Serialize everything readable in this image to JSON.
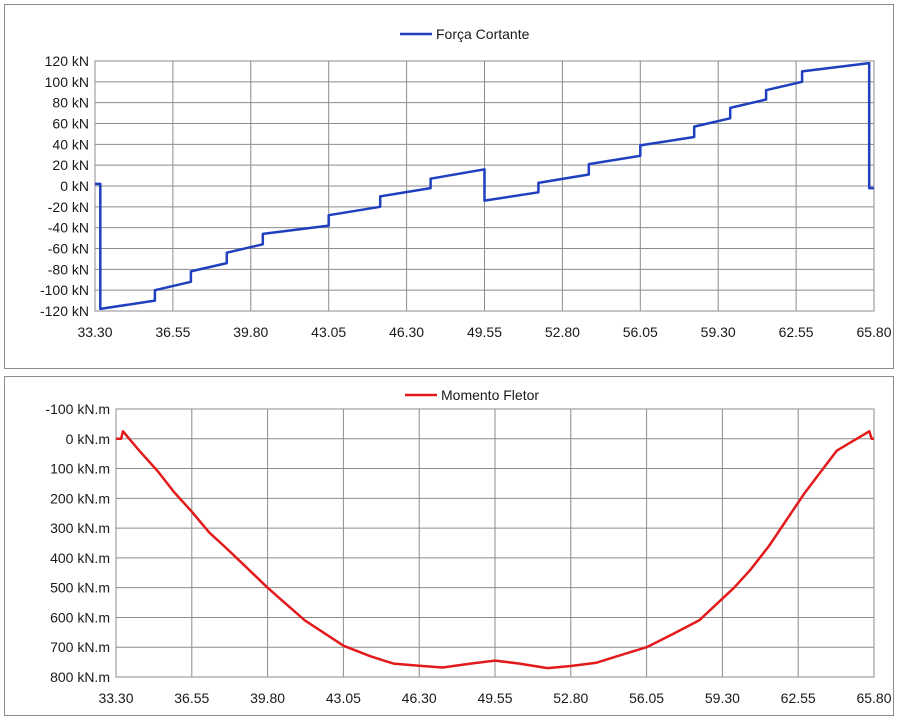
{
  "chart_data": [
    {
      "type": "line",
      "series": [
        {
          "name": "Força Cortante",
          "color": "#1f3fbf",
          "points": [
            [
              33.3,
              2
            ],
            [
              33.52,
              2
            ],
            [
              33.52,
              -118
            ],
            [
              35.8,
              -110
            ],
            [
              35.8,
              -100
            ],
            [
              37.3,
              -92
            ],
            [
              37.3,
              -82
            ],
            [
              38.8,
              -74
            ],
            [
              38.8,
              -64
            ],
            [
              40.3,
              -56
            ],
            [
              40.3,
              -46
            ],
            [
              43.05,
              -38
            ],
            [
              43.05,
              -28
            ],
            [
              45.2,
              -20
            ],
            [
              45.2,
              -10
            ],
            [
              47.3,
              -2
            ],
            [
              47.3,
              7
            ],
            [
              49.55,
              16
            ],
            [
              49.55,
              -14
            ],
            [
              51.8,
              -6
            ],
            [
              51.8,
              3
            ],
            [
              53.9,
              11
            ],
            [
              53.9,
              21
            ],
            [
              56.05,
              29
            ],
            [
              56.05,
              39
            ],
            [
              58.3,
              47
            ],
            [
              58.3,
              57
            ],
            [
              59.8,
              65
            ],
            [
              59.8,
              75
            ],
            [
              61.3,
              83
            ],
            [
              61.3,
              92
            ],
            [
              62.8,
              100
            ],
            [
              62.8,
              110
            ],
            [
              65.6,
              118
            ],
            [
              65.6,
              -2
            ],
            [
              65.8,
              -2
            ]
          ]
        }
      ],
      "x_ticks": [
        "33.30",
        "36.55",
        "39.80",
        "43.05",
        "46.30",
        "49.55",
        "52.80",
        "56.05",
        "59.30",
        "62.55",
        "65.80"
      ],
      "y_ticks": [
        "120 kN",
        "100 kN",
        "80 kN",
        "60 kN",
        "40 kN",
        "20 kN",
        "0 kN",
        "-20 kN",
        "-40 kN",
        "-60 kN",
        "-80 kN",
        "-100 kN",
        "-120 kN"
      ],
      "xlim": [
        33.3,
        65.8
      ],
      "ylim": [
        -120,
        120
      ],
      "grid": true,
      "legend_position": "top-center"
    },
    {
      "type": "line",
      "series": [
        {
          "name": "Momento Fletor",
          "color": "#e31a1c",
          "points": [
            [
              33.3,
              0
            ],
            [
              33.52,
              0
            ],
            [
              33.6,
              -25
            ],
            [
              34.3,
              40
            ],
            [
              35.1,
              110
            ],
            [
              35.8,
              180
            ],
            [
              36.55,
              245
            ],
            [
              37.3,
              315
            ],
            [
              38.0,
              365
            ],
            [
              38.8,
              425
            ],
            [
              39.8,
              500
            ],
            [
              40.3,
              535
            ],
            [
              41.4,
              610
            ],
            [
              43.05,
              695
            ],
            [
              44.2,
              730
            ],
            [
              45.2,
              755
            ],
            [
              46.3,
              762
            ],
            [
              47.3,
              768
            ],
            [
              48.5,
              755
            ],
            [
              49.55,
              745
            ],
            [
              50.6,
              755
            ],
            [
              51.8,
              770
            ],
            [
              52.8,
              763
            ],
            [
              53.9,
              752
            ],
            [
              55.0,
              725
            ],
            [
              56.05,
              700
            ],
            [
              57.2,
              655
            ],
            [
              58.3,
              610
            ],
            [
              59.8,
              500
            ],
            [
              60.5,
              440
            ],
            [
              61.3,
              360
            ],
            [
              62.8,
              185
            ],
            [
              64.2,
              40
            ],
            [
              65.6,
              -25
            ],
            [
              65.7,
              0
            ],
            [
              65.8,
              0
            ]
          ]
        }
      ],
      "x_ticks": [
        "33.30",
        "36.55",
        "39.80",
        "43.05",
        "46.30",
        "49.55",
        "52.80",
        "56.05",
        "59.30",
        "62.55",
        "65.80"
      ],
      "y_ticks": [
        "-100 kN.m",
        "0 kN.m",
        "100 kN.m",
        "200 kN.m",
        "300 kN.m",
        "400 kN.m",
        "500 kN.m",
        "600 kN.m",
        "700 kN.m",
        "800 kN.m"
      ],
      "xlim": [
        33.3,
        65.8
      ],
      "ylim": [
        -100,
        800
      ],
      "y_inverted": true,
      "grid": true,
      "legend_position": "top-center"
    }
  ]
}
